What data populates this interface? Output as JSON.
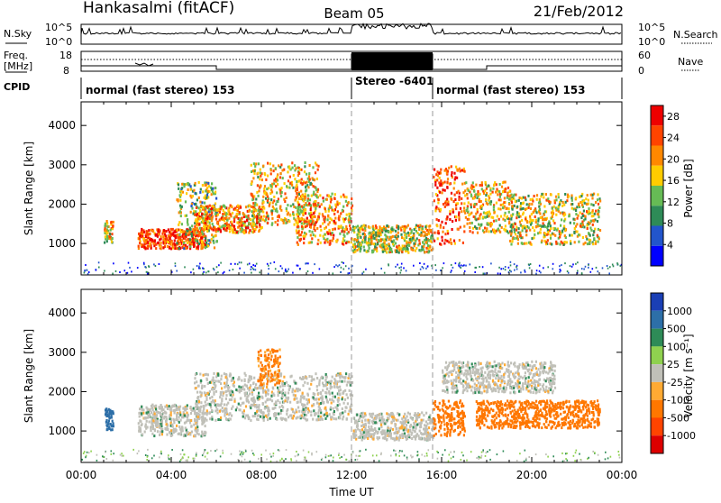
{
  "header": {
    "station": "Hankasalmi (fitACF)",
    "beam": "Beam 05",
    "date": "21/Feb/2012"
  },
  "noise_panel": {
    "left_label": "N.Sky",
    "right_label": "N.Search",
    "left_ticks": [
      "10^5",
      "10^0"
    ],
    "right_ticks": [
      "10^5",
      "10^0"
    ]
  },
  "freq_panel": {
    "left_label_line1": "Freq.",
    "left_label_line2": "[MHz]",
    "left_ticks": [
      "18",
      "8"
    ],
    "right_label": "Nave",
    "right_ticks": [
      "60",
      "0"
    ],
    "cpid_label": "CPID"
  },
  "cpid_segments": [
    {
      "label": "normal (fast stereo) 153",
      "start_hour": 0,
      "end_hour": 12
    },
    {
      "label": "Stereo -6401",
      "start_hour": 12,
      "end_hour": 15.6
    },
    {
      "label": "normal (fast stereo) 153",
      "start_hour": 15.6,
      "end_hour": 24
    }
  ],
  "chart_data": [
    {
      "type": "heatmap",
      "title": "",
      "xlabel": "",
      "ylabel": "Slant Range [km]",
      "xlim": [
        0,
        24
      ],
      "ylim": [
        200,
        4600
      ],
      "yticks": [
        1000,
        2000,
        3000,
        4000
      ],
      "colorbar": {
        "label": "Power [dB]",
        "ticks": [
          "4",
          "8",
          "12",
          "16",
          "20",
          "24",
          "28"
        ],
        "range": [
          0,
          30
        ],
        "colors": [
          "#0000ff",
          "#2255cc",
          "#2e8b57",
          "#66bb55",
          "#ffcc00",
          "#ff8800",
          "#ff4400",
          "#ee0000"
        ]
      },
      "scatter_bands": [
        {
          "start_hour": 1.0,
          "end_hour": 1.4,
          "low_km": 1050,
          "high_km": 1600,
          "power_db": 18
        },
        {
          "start_hour": 2.5,
          "end_hour": 5.5,
          "low_km": 900,
          "high_km": 1400,
          "power_db": 26
        },
        {
          "start_hour": 4.2,
          "end_hour": 6.0,
          "low_km": 900,
          "high_km": 2600,
          "power_db": 14
        },
        {
          "start_hour": 5.0,
          "end_hour": 8.0,
          "low_km": 1300,
          "high_km": 2000,
          "power_db": 20
        },
        {
          "start_hour": 7.5,
          "end_hour": 10.5,
          "low_km": 1500,
          "high_km": 3100,
          "power_db": 18
        },
        {
          "start_hour": 9.5,
          "end_hour": 12.0,
          "low_km": 1000,
          "high_km": 2300,
          "power_db": 20
        },
        {
          "start_hour": 12.0,
          "end_hour": 15.6,
          "low_km": 800,
          "high_km": 1500,
          "power_db": 16
        },
        {
          "start_hour": 15.6,
          "end_hour": 17.0,
          "low_km": 1000,
          "high_km": 3000,
          "power_db": 24
        },
        {
          "start_hour": 17.0,
          "end_hour": 19.0,
          "low_km": 1300,
          "high_km": 2600,
          "power_db": 18
        },
        {
          "start_hour": 19.0,
          "end_hour": 23.0,
          "low_km": 1000,
          "high_km": 2300,
          "power_db": 16
        }
      ]
    },
    {
      "type": "heatmap",
      "title": "",
      "xlabel": "Time UT",
      "ylabel": "Slant Range [km]",
      "xlim": [
        0,
        24
      ],
      "ylim": [
        200,
        4600
      ],
      "xticks": [
        "00:00",
        "04:00",
        "08:00",
        "12:00",
        "16:00",
        "20:00",
        "00:00"
      ],
      "yticks": [
        1000,
        2000,
        3000,
        4000
      ],
      "colorbar": {
        "label": "Velocity [m s⁻¹]",
        "ticks": [
          "1000",
          "500",
          "100",
          "25",
          "-25",
          "-100",
          "-500",
          "-1000"
        ],
        "colors": [
          "#1a3fb5",
          "#2d6fa8",
          "#2e8b57",
          "#8fd14f",
          "#c0c0b8",
          "#ffaa33",
          "#ff7700",
          "#ff4400",
          "#dd0000"
        ]
      },
      "scatter_bands": [
        {
          "start_hour": 1.0,
          "end_hour": 1.4,
          "low_km": 1050,
          "high_km": 1600,
          "velocity": 300
        },
        {
          "start_hour": 2.5,
          "end_hour": 5.5,
          "low_km": 900,
          "high_km": 1700,
          "velocity": 0
        },
        {
          "start_hour": 5.0,
          "end_hour": 12.0,
          "low_km": 1300,
          "high_km": 2500,
          "velocity": 0
        },
        {
          "start_hour": 7.8,
          "end_hour": 8.8,
          "low_km": 2200,
          "high_km": 3100,
          "velocity": -150
        },
        {
          "start_hour": 12.0,
          "end_hour": 15.6,
          "low_km": 800,
          "high_km": 1500,
          "velocity": 0
        },
        {
          "start_hour": 15.6,
          "end_hour": 17.0,
          "low_km": 900,
          "high_km": 1800,
          "velocity": -300
        },
        {
          "start_hour": 17.5,
          "end_hour": 23.0,
          "low_km": 1100,
          "high_km": 1800,
          "velocity": -250
        },
        {
          "start_hour": 16.0,
          "end_hour": 21.0,
          "low_km": 2000,
          "high_km": 2800,
          "velocity": 0
        }
      ]
    }
  ]
}
